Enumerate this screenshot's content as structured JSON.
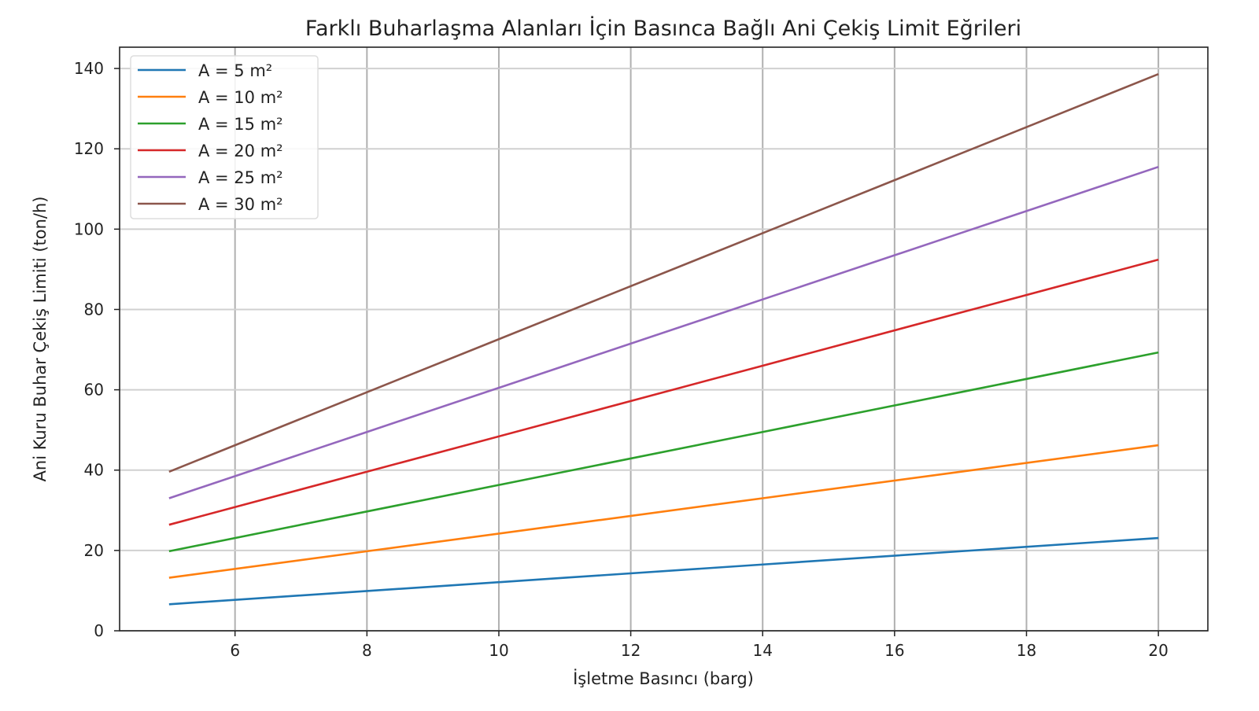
{
  "chart_data": {
    "type": "line",
    "title": "Farklı Buharlaşma Alanları İçin Basınca Bağlı Ani Çekiş Limit Eğrileri",
    "xlabel": "İşletme Basıncı (barg)",
    "ylabel": "Ani Kuru Buhar Çekiş Limiti (ton/h)",
    "xlim": [
      4.25,
      20.75
    ],
    "ylim": [
      0,
      145.3
    ],
    "xticks": [
      6,
      8,
      10,
      12,
      14,
      16,
      18,
      20
    ],
    "yticks": [
      0,
      20,
      40,
      60,
      80,
      100,
      120,
      140
    ],
    "grid": true,
    "legend_position": "top-left",
    "x": [
      5,
      8,
      11,
      14,
      17,
      20
    ],
    "series": [
      {
        "name": "A = 5 m²",
        "color": "#1f77b4",
        "values": [
          6.6,
          9.9,
          13.2,
          16.5,
          19.8,
          23.1
        ]
      },
      {
        "name": "A = 10 m²",
        "color": "#ff7f0e",
        "values": [
          13.2,
          19.8,
          26.4,
          33.0,
          39.6,
          46.2
        ]
      },
      {
        "name": "A = 15 m²",
        "color": "#2ca02c",
        "values": [
          19.8,
          29.7,
          39.6,
          49.5,
          59.4,
          69.3
        ]
      },
      {
        "name": "A = 20 m²",
        "color": "#d62728",
        "values": [
          26.4,
          39.6,
          52.8,
          66.0,
          79.2,
          92.4
        ]
      },
      {
        "name": "A = 25 m²",
        "color": "#9467bd",
        "values": [
          33.0,
          49.5,
          66.0,
          82.5,
          99.0,
          115.5
        ]
      },
      {
        "name": "A = 30 m²",
        "color": "#8c564b",
        "values": [
          39.6,
          59.4,
          79.2,
          99.0,
          118.8,
          138.6
        ]
      }
    ]
  }
}
